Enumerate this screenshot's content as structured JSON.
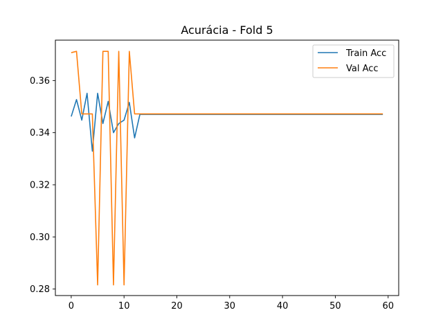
{
  "chart_data": {
    "type": "line",
    "title": "Acurácia - Fold 5",
    "xlabel": "",
    "ylabel": "",
    "xlim": [
      -3,
      62
    ],
    "ylim": [
      0.2775,
      0.3755
    ],
    "xticks": [
      0,
      10,
      20,
      30,
      40,
      50,
      60
    ],
    "yticks": [
      0.28,
      0.3,
      0.32,
      0.34,
      0.36
    ],
    "ytick_labels": [
      "0.28",
      "0.30",
      "0.32",
      "0.34",
      "0.36"
    ],
    "grid": false,
    "legend_position": "top-right",
    "series": [
      {
        "name": "Train Acc",
        "color": "#1f77b4",
        "x": [
          0,
          1,
          2,
          3,
          4,
          5,
          6,
          7,
          8,
          9,
          10,
          11,
          12,
          13,
          14,
          15,
          16,
          17,
          18,
          19,
          20,
          21,
          22,
          23,
          24,
          25,
          26,
          27,
          28,
          29,
          30,
          31,
          32,
          33,
          34,
          35,
          36,
          37,
          38,
          39,
          40,
          41,
          42,
          43,
          44,
          45,
          46,
          47,
          48,
          49,
          50,
          51,
          52,
          53,
          54,
          55,
          56,
          57,
          58,
          59
        ],
        "values": [
          0.3462,
          0.3527,
          0.3448,
          0.3551,
          0.3329,
          0.3551,
          0.3435,
          0.352,
          0.34,
          0.3435,
          0.3448,
          0.3516,
          0.338,
          0.347,
          0.347,
          0.347,
          0.347,
          0.347,
          0.347,
          0.347,
          0.347,
          0.347,
          0.347,
          0.347,
          0.347,
          0.347,
          0.347,
          0.347,
          0.347,
          0.347,
          0.347,
          0.347,
          0.347,
          0.347,
          0.347,
          0.347,
          0.347,
          0.347,
          0.347,
          0.347,
          0.347,
          0.347,
          0.347,
          0.347,
          0.347,
          0.347,
          0.347,
          0.347,
          0.347,
          0.347,
          0.347,
          0.347,
          0.347,
          0.347,
          0.347,
          0.347,
          0.347,
          0.347,
          0.347,
          0.347
        ]
      },
      {
        "name": "Val Acc",
        "color": "#ff7f0e",
        "x": [
          0,
          1,
          2,
          3,
          4,
          5,
          6,
          7,
          8,
          9,
          10,
          11,
          12,
          13,
          14,
          15,
          16,
          17,
          18,
          19,
          20,
          21,
          22,
          23,
          24,
          25,
          26,
          27,
          28,
          29,
          30,
          31,
          32,
          33,
          34,
          35,
          36,
          37,
          38,
          39,
          40,
          41,
          42,
          43,
          44,
          45,
          46,
          47,
          48,
          49,
          50,
          51,
          52,
          53,
          54,
          55,
          56,
          57,
          58,
          59
        ],
        "values": [
          0.3707,
          0.3712,
          0.3472,
          0.3472,
          0.3472,
          0.2816,
          0.3712,
          0.3712,
          0.2816,
          0.3712,
          0.2816,
          0.3712,
          0.3472,
          0.3472,
          0.3472,
          0.3472,
          0.3472,
          0.3472,
          0.3472,
          0.3472,
          0.3472,
          0.3472,
          0.3472,
          0.3472,
          0.3472,
          0.3472,
          0.3472,
          0.3472,
          0.3472,
          0.3472,
          0.3472,
          0.3472,
          0.3472,
          0.3472,
          0.3472,
          0.3472,
          0.3472,
          0.3472,
          0.3472,
          0.3472,
          0.3472,
          0.3472,
          0.3472,
          0.3472,
          0.3472,
          0.3472,
          0.3472,
          0.3472,
          0.3472,
          0.3472,
          0.3472,
          0.3472,
          0.3472,
          0.3472,
          0.3472,
          0.3472,
          0.3472,
          0.3472,
          0.3472,
          0.3472
        ]
      }
    ]
  }
}
